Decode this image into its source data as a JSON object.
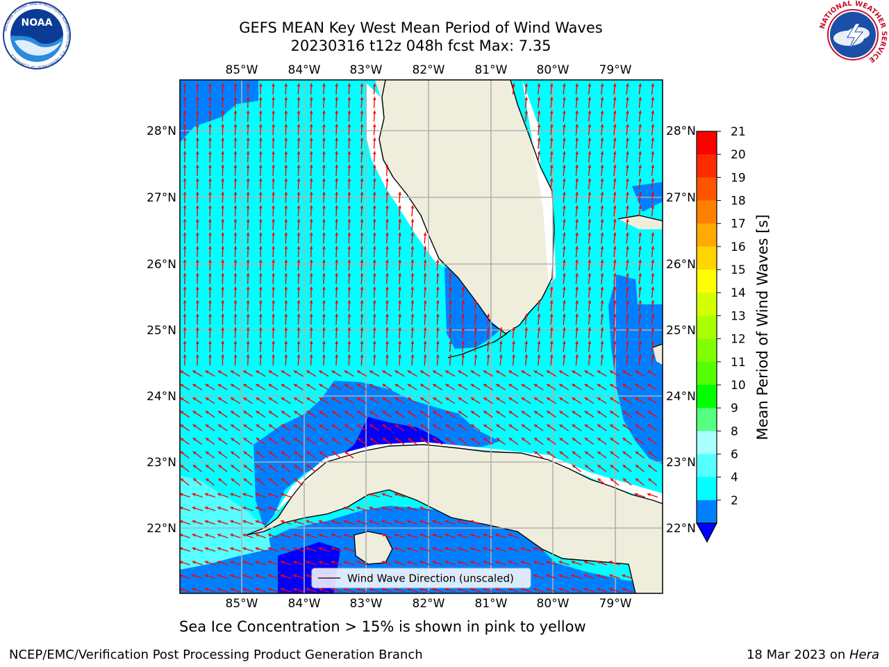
{
  "title": {
    "line1": "GEFS MEAN Key West Mean Period of Wind Waves",
    "line2": "20230316 t12z 048h fcst   Max: 7.35"
  },
  "logos": {
    "left": "NOAA",
    "left_ring": "NATIONAL OCEANIC AND ATMOSPHERIC ADMINISTRATION · U.S. DEPARTMENT OF COMMERCE",
    "right_ring": "NATIONAL WEATHER SERVICE"
  },
  "map": {
    "lon_ticks": [
      "85°W",
      "84°W",
      "83°W",
      "82°W",
      "81°W",
      "80°W",
      "79°W"
    ],
    "lat_ticks": [
      "28°N",
      "27°N",
      "26°N",
      "25°N",
      "24°N",
      "23°N",
      "22°N"
    ],
    "legend_label": "Wind Wave Direction (unscaled)",
    "colors": {
      "cyan": "#00FFFF",
      "blue": "#0080FF",
      "dark_blue": "#0000FF",
      "light_cyan": "#55FFFF",
      "land": "#EFEEDC",
      "arrow": "#FF0000"
    }
  },
  "colorbar": {
    "label": "Mean Period of Wind Waves [s]",
    "ticks": [
      "21",
      "20",
      "19",
      "18",
      "17",
      "16",
      "15",
      "14",
      "13",
      "12",
      "11",
      "10",
      "9",
      "8",
      "6",
      "4",
      "2"
    ],
    "colors": [
      "#FF0000",
      "#FF2B00",
      "#FF5500",
      "#FF8000",
      "#FFAA00",
      "#FFD500",
      "#FFFF00",
      "#D4FF00",
      "#AAFF00",
      "#80FF00",
      "#55FF00",
      "#00FF00",
      "#55FF80",
      "#AAFFFF",
      "#55FFFF",
      "#00FFFF",
      "#0080FF"
    ],
    "under_color": "#0000FF"
  },
  "caption": "Sea Ice Concentration > 15% is shown in pink to yellow",
  "footer": {
    "left": "NCEP/EMC/Verification Post Processing Product Generation Branch",
    "right_prefix": "18 Mar 2023 on ",
    "right_host": "Hera"
  }
}
